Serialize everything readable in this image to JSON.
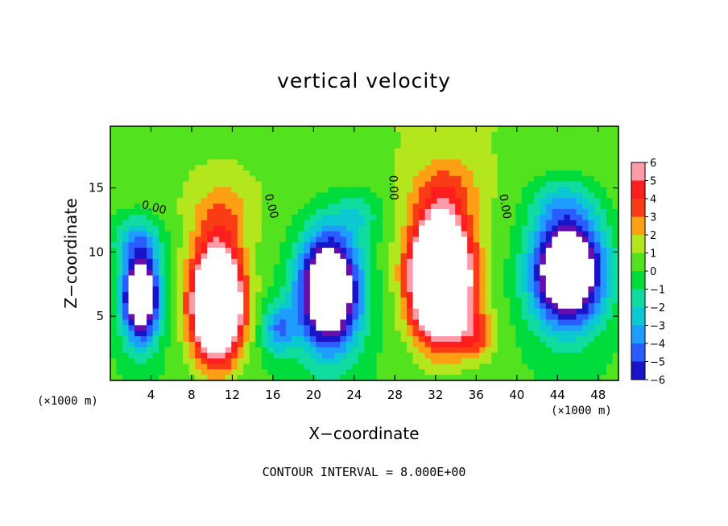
{
  "chart_data": {
    "type": "heatmap",
    "title": "vertical velocity",
    "xlabel": "X−coordinate",
    "ylabel": "Z−coordinate",
    "x_unit_label": "(×1000 m)",
    "x_ticks": [
      4,
      8,
      12,
      16,
      20,
      24,
      28,
      32,
      36,
      40,
      44,
      48
    ],
    "y_ticks": [
      5,
      10,
      15
    ],
    "xlim": [
      0,
      50
    ],
    "ylim": [
      0,
      19.8
    ],
    "footer": "CONTOUR INTERVAL = 8.000E+00",
    "colorbar": {
      "ticks": [
        6,
        5,
        4,
        3,
        2,
        1,
        0,
        -1,
        -2,
        -3,
        -4,
        -5,
        -6
      ],
      "range": [
        -6,
        6
      ],
      "tick_labels": [
        "6",
        "5",
        "4",
        "3",
        "2",
        "1",
        "0",
        "−1",
        "−2",
        "−3",
        "−4",
        "−5",
        "−6"
      ]
    },
    "contour_labels": [
      {
        "text": "0.00",
        "x": 4.2,
        "z": 13.2,
        "angle": 15
      },
      {
        "text": "0.00",
        "x": 15.5,
        "z": 13.5,
        "angle": 75
      },
      {
        "text": "0.00",
        "x": 27.5,
        "z": 15.0,
        "angle": 88
      },
      {
        "text": "0.00",
        "x": 38.5,
        "z": 13.5,
        "angle": 80
      }
    ],
    "cells": [
      {
        "x": 3.0,
        "z": 6.5,
        "sx": 1.8,
        "sz": 3.4,
        "w": -11
      },
      {
        "x": 2.5,
        "z": 11.0,
        "sx": 2.5,
        "sz": 2.0,
        "w": -3
      },
      {
        "x": 10.5,
        "z": 6.0,
        "sx": 2.4,
        "sz": 4.2,
        "w": 14
      },
      {
        "x": 11.0,
        "z": 13.0,
        "sx": 3.0,
        "sz": 2.5,
        "w": 2
      },
      {
        "x": 21.5,
        "z": 7.0,
        "sx": 3.0,
        "sz": 4.5,
        "w": -12
      },
      {
        "x": 24.5,
        "z": 13.0,
        "sx": 2.5,
        "sz": 2.0,
        "w": -2
      },
      {
        "x": 32.5,
        "z": 8.0,
        "sx": 2.8,
        "sz": 4.5,
        "w": 16
      },
      {
        "x": 33.0,
        "z": 15.0,
        "sx": 3.5,
        "sz": 2.5,
        "w": 2
      },
      {
        "x": 45.0,
        "z": 8.5,
        "sx": 3.5,
        "sz": 4.2,
        "w": -12
      },
      {
        "x": 44.5,
        "z": 14.0,
        "sx": 3.5,
        "sz": 2.0,
        "w": -2
      },
      {
        "x": 16.5,
        "z": 4.0,
        "sx": 1.6,
        "sz": 2.0,
        "w": -4
      },
      {
        "x": 36.0,
        "z": 3.5,
        "sx": 2.0,
        "sz": 2.0,
        "w": 3
      }
    ]
  },
  "colors": {
    "purple": "#6a0dad",
    "dark_blue": "#1a14c8",
    "blue": "#2a5cff",
    "light_blue": "#1e9cff",
    "cyan": "#0cc8d2",
    "teal": "#10dca0",
    "green": "#00dc3c",
    "light_green": "#52e31e",
    "yellow_green": "#b4e61e",
    "yellow": "#f5e61e",
    "orange": "#ffa014",
    "red": "#fa3c14",
    "crimson": "#ff1e1e",
    "pink": "#ff5a78",
    "light_pink": "#ff9aa8",
    "frame": "#000000"
  }
}
